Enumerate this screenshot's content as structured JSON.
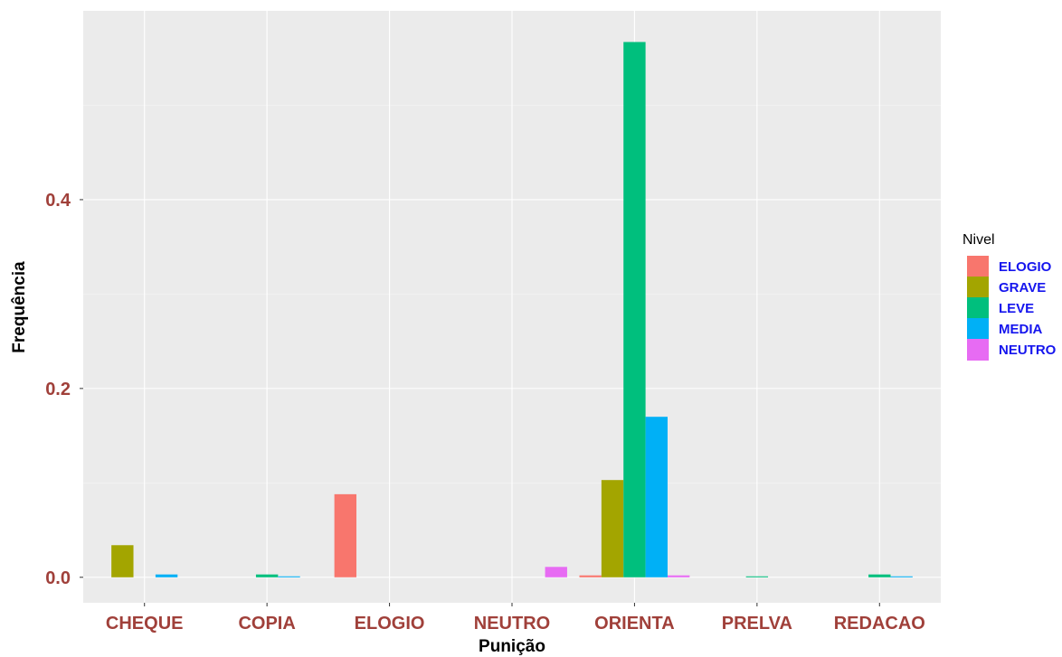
{
  "chart_data": {
    "type": "bar",
    "title": "",
    "xlabel": "Punição",
    "ylabel": "Frequência",
    "categories": [
      "CHEQUE",
      "COPIA",
      "ELOGIO",
      "NEUTRO",
      "ORIENTA",
      "PRELVA",
      "REDACAO"
    ],
    "yticks": [
      "0.0",
      "0.2",
      "0.4"
    ],
    "ylim": [
      -0.027,
      0.6
    ],
    "grid": true,
    "legend": {
      "title": "Nivel",
      "placement": "right"
    },
    "series": [
      {
        "name": "ELOGIO",
        "color": "#F8766D",
        "values": [
          null,
          null,
          0.088,
          null,
          0.002,
          null,
          null
        ]
      },
      {
        "name": "GRAVE",
        "color": "#A3A500",
        "values": [
          0.034,
          null,
          null,
          null,
          0.103,
          null,
          null
        ]
      },
      {
        "name": "LEVE",
        "color": "#00BF7D",
        "values": [
          null,
          0.003,
          null,
          null,
          0.567,
          0.001,
          0.003
        ]
      },
      {
        "name": "MEDIA",
        "color": "#00B0F6",
        "values": [
          0.003,
          0.001,
          null,
          null,
          0.17,
          null,
          0.001
        ]
      },
      {
        "name": "NEUTRO",
        "color": "#E76BF3",
        "values": [
          null,
          null,
          null,
          0.011,
          0.002,
          null,
          null
        ]
      }
    ]
  }
}
